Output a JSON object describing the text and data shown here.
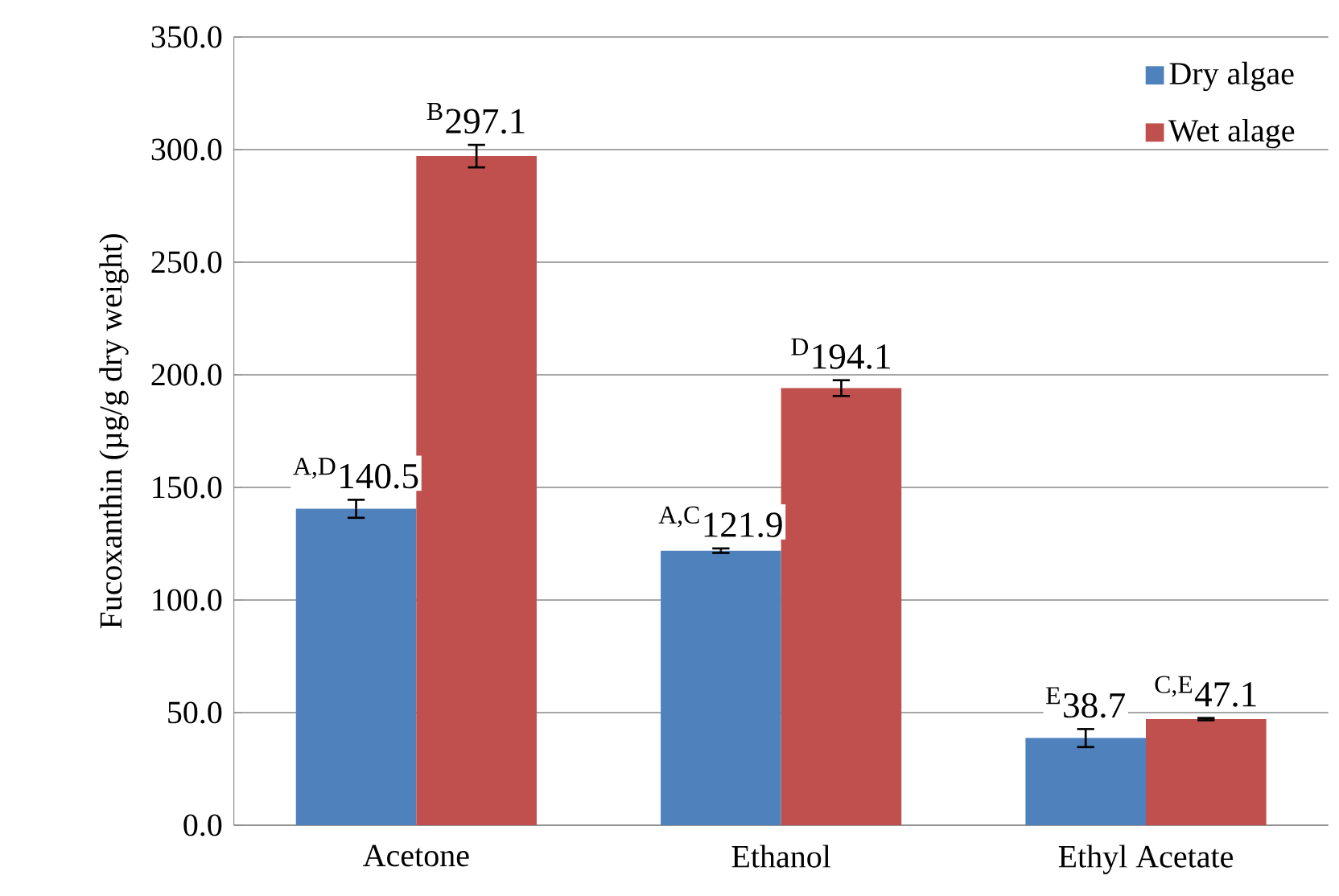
{
  "chart_data": {
    "type": "bar",
    "ylabel": "Fucoxanthin (µg/g dry weight)",
    "categories": [
      "Acetone",
      "Ethanol",
      "Ethyl Acetate"
    ],
    "series": [
      {
        "name": "Dry algae",
        "color": "#4f81bd",
        "values": [
          140.5,
          121.9,
          38.7
        ],
        "errors": [
          4,
          1,
          4
        ],
        "value_labels": [
          "$^{A,D}$140.5",
          "$^{A,C}$121.9",
          "$^{E}$38.7"
        ]
      },
      {
        "name": "Wet alage",
        "color": "#c0504d",
        "values": [
          297.1,
          194.1,
          47.1
        ],
        "errors": [
          5,
          3.5,
          0.5
        ],
        "value_labels": [
          "$^{B}$297.1",
          "$^{D}$194.1",
          "$^{C,E}$47.1"
        ]
      }
    ],
    "ylim": [
      0,
      350
    ],
    "yticks": [
      {
        "value": 0,
        "label": "0.0"
      },
      {
        "value": 50,
        "label": "50.0"
      },
      {
        "value": 100,
        "label": "100.0"
      },
      {
        "value": 150,
        "label": "150.0"
      },
      {
        "value": 200,
        "label": "200.0"
      },
      {
        "value": 250,
        "label": "250.0"
      },
      {
        "value": 300,
        "label": "300.0"
      },
      {
        "value": 350,
        "label": "350.0"
      }
    ],
    "grid": "y",
    "legend": "top right"
  }
}
